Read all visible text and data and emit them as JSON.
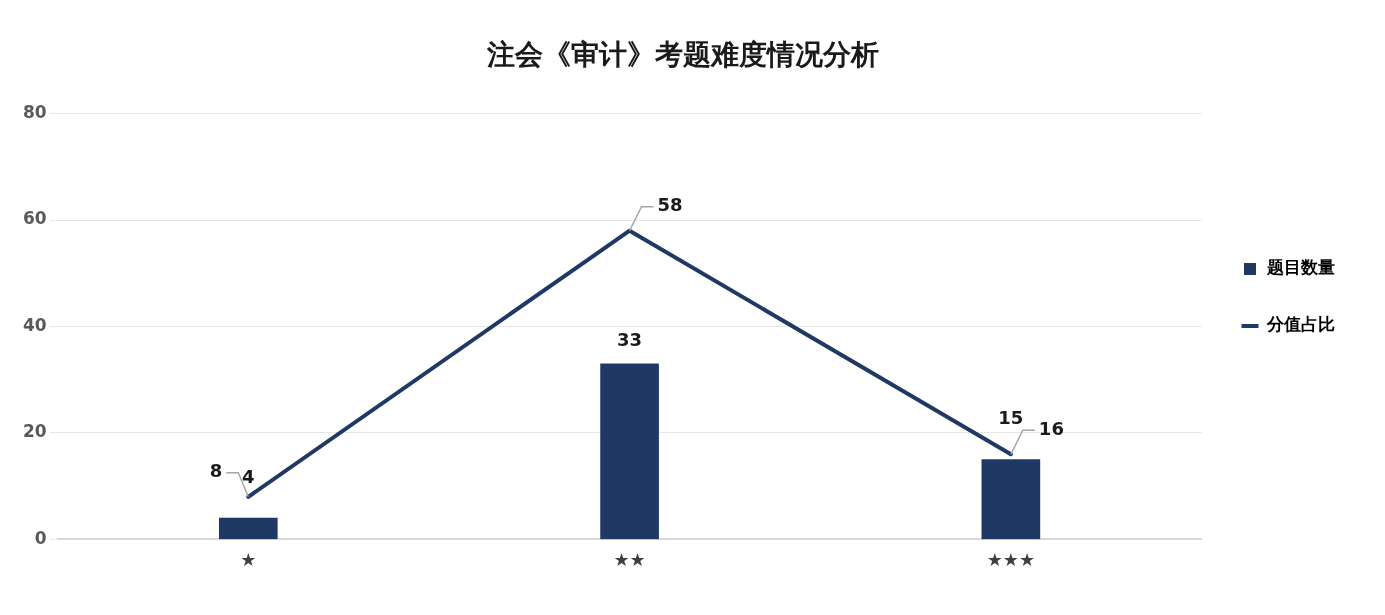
{
  "chart_data": {
    "type": "bar",
    "title": "注会《审计》考题难度情况分析",
    "categories": [
      "★",
      "★★",
      "★★★"
    ],
    "series": [
      {
        "name": "题目数量",
        "color": "#203864",
        "values": [
          4,
          33,
          15
        ]
      },
      {
        "name": "分值占比",
        "type": "line",
        "color": "#203864",
        "values": [
          8,
          58,
          16
        ]
      }
    ],
    "ylim": [
      0,
      80
    ],
    "yticks": [
      0,
      20,
      40,
      60,
      80
    ],
    "grid": "y",
    "legend": "right",
    "data_labels": true,
    "marker": "none"
  }
}
